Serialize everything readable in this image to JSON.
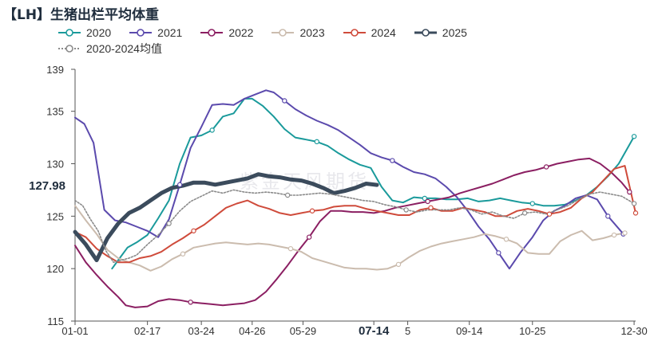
{
  "chart_data": {
    "type": "line",
    "title": "【LH】生猪出栏平均体重",
    "xlabel": "",
    "ylabel": "",
    "ylim": [
      115,
      139
    ],
    "yticks": [
      115,
      120,
      125,
      130,
      135,
      139
    ],
    "xlim": [
      1,
      365
    ],
    "xticks": [
      {
        "label": "01-01",
        "day": 1
      },
      {
        "label": "02-17",
        "day": 48
      },
      {
        "label": "03-24",
        "day": 83
      },
      {
        "label": "04-26",
        "day": 116
      },
      {
        "label": "05-29",
        "day": 149
      },
      {
        "label": "07-14",
        "day": 195
      },
      {
        "label": "5",
        "day": 217
      },
      {
        "label": "09-14",
        "day": 257
      },
      {
        "label": "10-25",
        "day": 298
      },
      {
        "label": "12-30",
        "day": 364
      }
    ],
    "highlight_xtick": "07-14",
    "current_value": {
      "label": "127.98",
      "value": 127.98
    },
    "watermark": "紫金天风期货",
    "series": [
      {
        "name": "2020",
        "color": "#1a9a9b",
        "dash": "",
        "width": 2,
        "marker": "circle",
        "x": [
          25,
          30,
          35,
          41,
          48,
          55,
          62,
          69,
          76,
          83,
          90,
          97,
          104,
          111,
          116,
          123,
          130,
          137,
          144,
          151,
          158,
          165,
          172,
          179,
          186,
          193,
          200,
          207,
          214,
          221,
          228,
          235,
          242,
          249,
          256,
          263,
          270,
          277,
          284,
          291,
          298,
          305,
          312,
          319,
          326,
          333,
          340,
          347,
          354,
          364
        ],
        "y": [
          120.0,
          121.0,
          122.0,
          122.5,
          123.2,
          124.8,
          126.5,
          130.0,
          132.5,
          132.7,
          133.2,
          134.5,
          134.8,
          136.2,
          136.2,
          135.5,
          134.5,
          133.3,
          132.5,
          132.3,
          132.1,
          131.7,
          131.0,
          130.4,
          129.9,
          129.6,
          127.8,
          126.5,
          126.3,
          126.8,
          126.7,
          126.7,
          126.6,
          126.6,
          126.7,
          126.4,
          126.5,
          126.7,
          126.5,
          126.3,
          126.2,
          126.0,
          126.0,
          126.1,
          126.5,
          127.0,
          127.8,
          128.8,
          130.0,
          132.6
        ]
      },
      {
        "name": "2021",
        "color": "#5b4aad",
        "dash": "",
        "width": 2,
        "marker": "circle",
        "x": [
          1,
          7,
          13,
          20,
          27,
          34,
          41,
          48,
          55,
          62,
          69,
          76,
          83,
          90,
          97,
          104,
          111,
          118,
          125,
          130,
          137,
          144,
          151,
          158,
          165,
          172,
          179,
          186,
          193,
          200,
          207,
          214,
          221,
          228,
          235,
          242,
          249,
          256,
          263,
          270,
          276,
          283,
          290,
          298,
          305,
          312,
          319,
          326,
          333,
          340,
          347,
          357
        ],
        "y": [
          134.4,
          133.8,
          132.0,
          125.6,
          124.6,
          124.4,
          124.0,
          123.6,
          123.0,
          124.7,
          128.0,
          131.5,
          133.5,
          135.6,
          135.7,
          135.6,
          136.2,
          136.6,
          137.0,
          136.8,
          136.0,
          135.2,
          134.6,
          134.1,
          133.7,
          133.2,
          132.5,
          131.8,
          131.0,
          130.6,
          130.3,
          129.7,
          129.2,
          129.0,
          128.6,
          127.8,
          126.8,
          125.5,
          124.0,
          122.8,
          121.5,
          120.0,
          121.5,
          123.0,
          124.6,
          125.5,
          126.0,
          126.7,
          127.0,
          126.6,
          125.0,
          123.3
        ]
      },
      {
        "name": "2022",
        "color": "#8b1f62",
        "dash": "",
        "width": 2,
        "marker": "circle",
        "x": [
          1,
          8,
          15,
          22,
          29,
          34,
          40,
          48,
          55,
          62,
          69,
          76,
          83,
          90,
          97,
          104,
          111,
          118,
          125,
          132,
          139,
          146,
          153,
          160,
          167,
          174,
          181,
          188,
          195,
          202,
          209,
          216,
          223,
          230,
          237,
          244,
          251,
          258,
          265,
          272,
          279,
          286,
          293,
          300,
          307,
          314,
          321,
          328,
          335,
          342,
          349,
          356,
          361
        ],
        "y": [
          122.2,
          120.6,
          119.4,
          118.3,
          117.3,
          116.5,
          116.3,
          116.4,
          116.9,
          117.1,
          117.0,
          116.8,
          116.7,
          116.6,
          116.5,
          116.6,
          116.7,
          117.0,
          117.8,
          119.0,
          120.3,
          121.7,
          123.0,
          124.5,
          125.5,
          125.5,
          125.4,
          125.4,
          125.3,
          125.5,
          125.8,
          126.0,
          126.2,
          126.4,
          126.6,
          126.8,
          127.2,
          127.5,
          127.8,
          128.1,
          128.5,
          128.9,
          129.2,
          129.4,
          129.7,
          130.0,
          130.2,
          130.4,
          130.5,
          130.0,
          129.2,
          128.2,
          127.3
        ]
      },
      {
        "name": "2023",
        "color": "#cbbcae",
        "dash": "",
        "width": 2,
        "marker": "circle",
        "x": [
          1,
          8,
          15,
          22,
          29,
          36,
          43,
          50,
          57,
          64,
          71,
          78,
          85,
          92,
          99,
          106,
          113,
          120,
          127,
          134,
          141,
          148,
          155,
          162,
          169,
          176,
          183,
          190,
          197,
          204,
          211,
          218,
          225,
          232,
          239,
          246,
          253,
          260,
          267,
          274,
          281,
          288,
          295,
          302,
          309,
          316,
          323,
          330,
          337,
          344,
          351,
          358
        ],
        "y": [
          126.0,
          124.6,
          123.3,
          121.8,
          121.0,
          120.6,
          120.3,
          119.8,
          120.2,
          120.9,
          121.4,
          122.0,
          122.2,
          122.4,
          122.5,
          122.4,
          122.3,
          122.4,
          122.3,
          122.1,
          121.9,
          121.6,
          121.0,
          120.7,
          120.4,
          120.1,
          120.0,
          120.0,
          119.9,
          120.0,
          120.4,
          121.1,
          121.7,
          122.1,
          122.4,
          122.6,
          122.8,
          123.0,
          123.3,
          123.1,
          122.8,
          122.4,
          121.5,
          121.4,
          121.4,
          122.6,
          123.2,
          123.6,
          122.7,
          122.9,
          123.2,
          123.4
        ]
      },
      {
        "name": "2024",
        "color": "#cf4b3b",
        "dash": "",
        "width": 2,
        "marker": "circle",
        "x": [
          1,
          8,
          15,
          22,
          29,
          36,
          43,
          50,
          57,
          64,
          71,
          78,
          85,
          92,
          99,
          106,
          113,
          120,
          127,
          134,
          141,
          148,
          155,
          162,
          169,
          176,
          183,
          190,
          197,
          204,
          211,
          218,
          225,
          232,
          239,
          246,
          253,
          260,
          267,
          274,
          281,
          288,
          295,
          302,
          309,
          316,
          323,
          330,
          337,
          344,
          351,
          358,
          365
        ],
        "y": [
          123.5,
          123.0,
          121.9,
          121.2,
          120.6,
          120.6,
          121.0,
          121.2,
          121.6,
          122.3,
          122.9,
          123.6,
          124.2,
          125.0,
          125.8,
          126.2,
          126.5,
          126.0,
          125.7,
          125.3,
          125.1,
          125.3,
          125.5,
          125.6,
          125.9,
          126.0,
          126.0,
          125.7,
          125.5,
          125.3,
          125.1,
          125.1,
          125.6,
          125.8,
          125.5,
          125.5,
          125.8,
          125.6,
          125.4,
          125.0,
          125.0,
          125.5,
          125.7,
          125.5,
          125.2,
          125.4,
          125.8,
          126.7,
          127.3,
          128.4,
          129.5,
          129.8,
          125.3
        ]
      },
      {
        "name": "2025",
        "color": "#3b4b5c",
        "dash": "",
        "width": 5,
        "marker": "circle",
        "x": [
          1,
          8,
          15,
          22,
          29,
          36,
          43,
          50,
          57,
          64,
          71,
          78,
          85,
          92,
          99,
          106,
          113,
          120,
          127,
          134,
          141,
          148,
          155,
          162,
          169,
          176,
          183,
          190,
          197
        ],
        "y": [
          123.5,
          122.3,
          120.8,
          122.9,
          124.3,
          125.3,
          125.8,
          126.5,
          127.2,
          127.7,
          127.9,
          128.2,
          128.2,
          128.0,
          128.2,
          128.4,
          128.6,
          129.0,
          128.8,
          128.7,
          128.5,
          128.4,
          128.1,
          127.7,
          127.2,
          127.4,
          127.7,
          128.1,
          127.98
        ]
      },
      {
        "name": "2020-2024均值",
        "color": "#8a8a8a",
        "dash": "2,2",
        "width": 1.6,
        "marker": "circle",
        "x": [
          1,
          6,
          11,
          16,
          21,
          26,
          31,
          36,
          41,
          48,
          55,
          62,
          69,
          76,
          83,
          90,
          97,
          104,
          111,
          118,
          125,
          132,
          139,
          146,
          153,
          160,
          167,
          174,
          181,
          188,
          195,
          202,
          209,
          216,
          223,
          230,
          237,
          244,
          251,
          258,
          265,
          272,
          279,
          286,
          293,
          300,
          307,
          314,
          321,
          328,
          335,
          342,
          349,
          356,
          364
        ],
        "y": [
          126.5,
          126.0,
          124.7,
          123.6,
          121.7,
          120.6,
          120.8,
          121.0,
          121.3,
          122.3,
          123.2,
          124.3,
          125.5,
          126.4,
          126.9,
          127.4,
          127.2,
          127.5,
          127.3,
          127.2,
          127.3,
          127.2,
          127.0,
          127.0,
          127.1,
          127.2,
          127.1,
          126.9,
          126.7,
          126.5,
          126.4,
          126.1,
          125.9,
          125.6,
          125.4,
          125.6,
          125.6,
          125.6,
          125.8,
          125.6,
          125.2,
          125.4,
          125.0,
          124.8,
          125.3,
          125.4,
          125.2,
          125.6,
          126.0,
          126.6,
          127.1,
          127.3,
          127.1,
          126.9,
          126.2
        ]
      }
    ]
  }
}
